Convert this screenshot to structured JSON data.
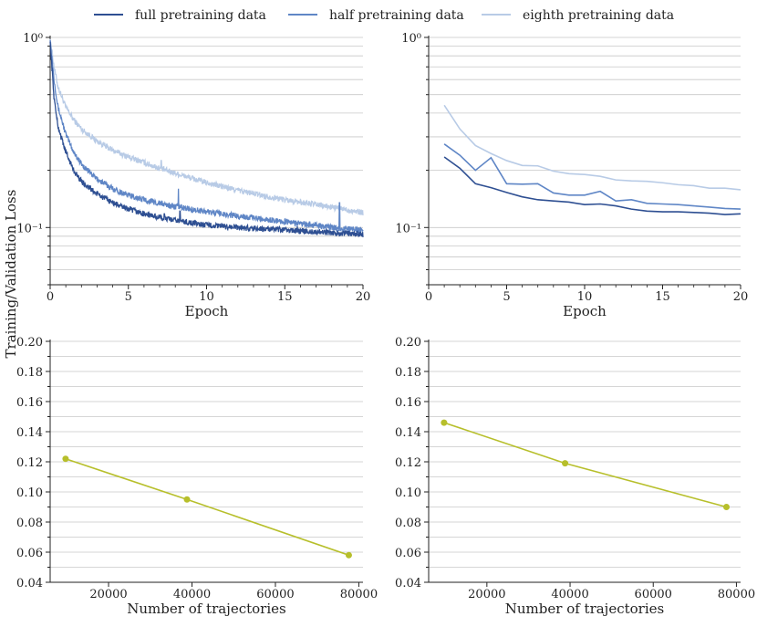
{
  "colors": {
    "full": "#2e4f92",
    "half": "#5f86c6",
    "eighth": "#b8cbe6",
    "trend": "#b7bf2b",
    "grid": "#c8c8c8",
    "axis": "#222222"
  },
  "legend": [
    {
      "key": "full",
      "label": "full pretraining data"
    },
    {
      "key": "half",
      "label": "half pretraining data"
    },
    {
      "key": "eighth",
      "label": "eighth pretraining data"
    }
  ],
  "shared_ylabel": "Training/Validation Loss",
  "chart_data": [
    {
      "id": "train-loss",
      "type": "line",
      "scale": "log",
      "xlabel": "Epoch",
      "xlim": [
        0,
        20
      ],
      "ylim": [
        0.05,
        1.0
      ],
      "xticks": [
        "0",
        "5",
        "10",
        "15",
        "20"
      ],
      "xtick_values": [
        0,
        5,
        10,
        15,
        20
      ],
      "ytick_labels": [
        {
          "value": 1.0,
          "label": "10⁰"
        },
        {
          "value": 0.1,
          "label": "10⁻¹"
        }
      ],
      "series": [
        {
          "key": "full",
          "name": "full pretraining data",
          "points": [
            [
              0.0,
              0.95
            ],
            [
              0.25,
              0.48
            ],
            [
              0.5,
              0.34
            ],
            [
              1,
              0.25
            ],
            [
              1.5,
              0.2
            ],
            [
              2,
              0.175
            ],
            [
              3,
              0.15
            ],
            [
              4,
              0.135
            ],
            [
              5,
              0.125
            ],
            [
              6,
              0.118
            ],
            [
              7,
              0.113
            ],
            [
              8,
              0.109
            ],
            [
              9,
              0.106
            ],
            [
              10,
              0.103
            ],
            [
              12,
              0.1
            ],
            [
              14,
              0.098
            ],
            [
              16,
              0.096
            ],
            [
              18,
              0.094
            ],
            [
              20,
              0.092
            ]
          ],
          "spikes": [
            [
              7.3,
              0.118
            ],
            [
              8.3,
              0.122
            ],
            [
              15.8,
              0.102
            ]
          ]
        },
        {
          "key": "half",
          "name": "half pretraining data",
          "points": [
            [
              0.0,
              0.97
            ],
            [
              0.25,
              0.6
            ],
            [
              0.5,
              0.43
            ],
            [
              1,
              0.31
            ],
            [
              1.5,
              0.25
            ],
            [
              2,
              0.215
            ],
            [
              3,
              0.18
            ],
            [
              4,
              0.16
            ],
            [
              5,
              0.148
            ],
            [
              6,
              0.14
            ],
            [
              7,
              0.134
            ],
            [
              8,
              0.129
            ],
            [
              9,
              0.125
            ],
            [
              10,
              0.121
            ],
            [
              12,
              0.115
            ],
            [
              14,
              0.11
            ],
            [
              16,
              0.105
            ],
            [
              18,
              0.1
            ],
            [
              20,
              0.097
            ]
          ],
          "spikes": [
            [
              8.2,
              0.16
            ],
            [
              18.5,
              0.135
            ]
          ]
        },
        {
          "key": "eighth",
          "name": "eighth pretraining data",
          "points": [
            [
              0.0,
              0.98
            ],
            [
              0.25,
              0.7
            ],
            [
              0.5,
              0.55
            ],
            [
              1,
              0.43
            ],
            [
              1.5,
              0.37
            ],
            [
              2,
              0.33
            ],
            [
              3,
              0.285
            ],
            [
              4,
              0.255
            ],
            [
              5,
              0.235
            ],
            [
              6,
              0.22
            ],
            [
              7,
              0.205
            ],
            [
              8,
              0.193
            ],
            [
              9,
              0.182
            ],
            [
              10,
              0.172
            ],
            [
              12,
              0.157
            ],
            [
              14,
              0.145
            ],
            [
              16,
              0.136
            ],
            [
              18,
              0.128
            ],
            [
              20,
              0.12
            ]
          ],
          "spikes": [
            [
              7.1,
              0.225
            ]
          ]
        }
      ]
    },
    {
      "id": "val-loss",
      "type": "line",
      "scale": "log",
      "xlabel": "Epoch",
      "xlim": [
        0,
        20
      ],
      "ylim": [
        0.05,
        1.0
      ],
      "xticks": [
        "0",
        "5",
        "10",
        "15",
        "20"
      ],
      "xtick_values": [
        0,
        5,
        10,
        15,
        20
      ],
      "ytick_labels": [
        {
          "value": 1.0,
          "label": "10⁰"
        },
        {
          "value": 0.1,
          "label": "10⁻¹"
        }
      ],
      "series": [
        {
          "key": "full",
          "name": "full pretraining data",
          "x": [
            1,
            2,
            3,
            4,
            5,
            6,
            7,
            8,
            9,
            10,
            11,
            12,
            13,
            14,
            15,
            16,
            17,
            18,
            19,
            20
          ],
          "y": [
            0.235,
            0.205,
            0.17,
            0.162,
            0.153,
            0.145,
            0.14,
            0.138,
            0.136,
            0.132,
            0.133,
            0.13,
            0.125,
            0.122,
            0.121,
            0.121,
            0.12,
            0.119,
            0.117,
            0.118
          ]
        },
        {
          "key": "half",
          "name": "half pretraining data",
          "x": [
            1,
            2,
            3,
            4,
            5,
            6,
            7,
            8,
            9,
            10,
            11,
            12,
            13,
            14,
            15,
            16,
            17,
            18,
            19,
            20
          ],
          "y": [
            0.275,
            0.24,
            0.2,
            0.233,
            0.17,
            0.169,
            0.17,
            0.152,
            0.148,
            0.148,
            0.155,
            0.138,
            0.14,
            0.134,
            0.133,
            0.132,
            0.13,
            0.128,
            0.126,
            0.125
          ]
        },
        {
          "key": "eighth",
          "name": "eighth pretraining data",
          "x": [
            1,
            2,
            3,
            4,
            5,
            6,
            7,
            8,
            9,
            10,
            11,
            12,
            13,
            14,
            15,
            16,
            17,
            18,
            19,
            20
          ],
          "y": [
            0.44,
            0.33,
            0.27,
            0.245,
            0.225,
            0.212,
            0.211,
            0.198,
            0.192,
            0.19,
            0.186,
            0.178,
            0.176,
            0.175,
            0.172,
            0.168,
            0.166,
            0.161,
            0.161,
            0.158
          ]
        }
      ]
    },
    {
      "id": "train-loss-vs-trajectories",
      "type": "line",
      "scale": "linear",
      "xlabel": "Number of trajectories",
      "xlim": [
        6000,
        81000
      ],
      "ylim": [
        0.04,
        0.2
      ],
      "xticks": [
        "20000",
        "40000",
        "60000",
        "80000"
      ],
      "xtick_values": [
        20000,
        40000,
        60000,
        80000
      ],
      "yticks": [
        "0.04",
        "0.06",
        "0.08",
        "0.10",
        "0.12",
        "0.14",
        "0.16",
        "0.18",
        "0.20"
      ],
      "ytick_values": [
        0.04,
        0.06,
        0.08,
        0.1,
        0.12,
        0.14,
        0.16,
        0.18,
        0.2
      ],
      "series": [
        {
          "key": "trend",
          "name": "loss",
          "x": [
            9700,
            38800,
            77600
          ],
          "y": [
            0.122,
            0.095,
            0.058
          ]
        }
      ]
    },
    {
      "id": "val-loss-vs-trajectories",
      "type": "line",
      "scale": "linear",
      "xlabel": "Number of trajectories",
      "xlim": [
        6000,
        81000
      ],
      "ylim": [
        0.04,
        0.2
      ],
      "xticks": [
        "20000",
        "40000",
        "60000",
        "80000"
      ],
      "xtick_values": [
        20000,
        40000,
        60000,
        80000
      ],
      "yticks": [
        "0.04",
        "0.06",
        "0.08",
        "0.10",
        "0.12",
        "0.14",
        "0.16",
        "0.18",
        "0.20"
      ],
      "ytick_values": [
        0.04,
        0.06,
        0.08,
        0.1,
        0.12,
        0.14,
        0.16,
        0.18,
        0.2
      ],
      "series": [
        {
          "key": "trend",
          "name": "loss",
          "x": [
            9700,
            38800,
            77600
          ],
          "y": [
            0.146,
            0.119,
            0.09
          ]
        }
      ]
    }
  ]
}
